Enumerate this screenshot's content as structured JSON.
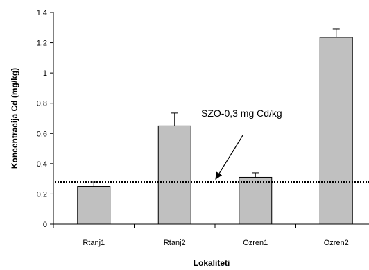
{
  "chart_data": {
    "type": "bar",
    "categories": [
      "Rtanj1",
      "Rtanj2",
      "Ozren1",
      "Ozren2"
    ],
    "values": [
      0.25,
      0.65,
      0.31,
      1.235
    ],
    "errors": [
      0.03,
      0.085,
      0.03,
      0.055
    ],
    "xlabel": "Lokaliteti",
    "ylabel": "Koncentracija Cd (mg/kg)",
    "ylim": [
      0,
      1.4
    ],
    "yticks": [
      0,
      0.2,
      0.4,
      0.6,
      0.8,
      1,
      1.2,
      1.4
    ],
    "ytick_labels": [
      "0",
      "0,2",
      "0,4",
      "0,6",
      "0,8",
      "1",
      "1,2",
      "1,4"
    ],
    "grid": false,
    "reference_line": {
      "value": 0.28,
      "style": "dotted",
      "label": "SZO-0,3 mg Cd/kg"
    },
    "colors": {
      "bar_fill": "#c0c0c0",
      "bar_stroke": "#000000"
    }
  }
}
